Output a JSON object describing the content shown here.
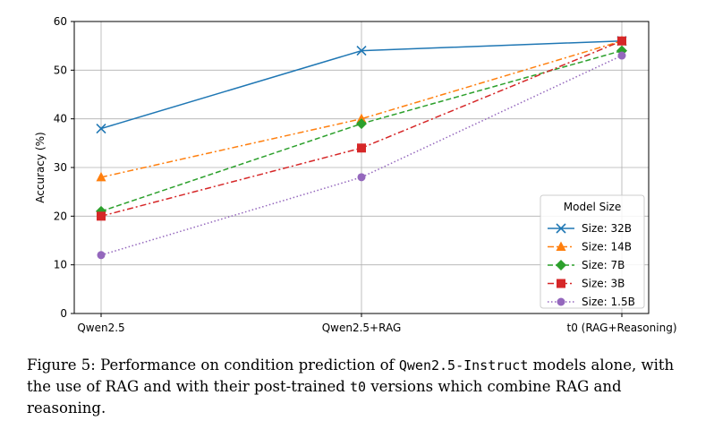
{
  "chart_data": {
    "type": "line",
    "categories": [
      "Qwen2.5",
      "Qwen2.5+RAG",
      "t0 (RAG+Reasoning)"
    ],
    "ylabel": "Accuracy (%)",
    "xlabel": "",
    "ylim": [
      0,
      60
    ],
    "yticks": [
      0,
      10,
      20,
      30,
      40,
      50,
      60
    ],
    "grid": true,
    "legend": {
      "title": "Model Size",
      "placement": "lower-right"
    },
    "series": [
      {
        "name": "Size: 32B",
        "values": [
          38,
          54,
          56
        ],
        "color": "#1f77b4",
        "marker": "x",
        "dash": "solid"
      },
      {
        "name": "Size: 14B",
        "values": [
          28,
          40,
          56
        ],
        "color": "#ff7f0e",
        "marker": "triangle",
        "dash": "dashdot"
      },
      {
        "name": "Size: 7B",
        "values": [
          21,
          39,
          54
        ],
        "color": "#2ca02c",
        "marker": "diamond",
        "dash": "dashed"
      },
      {
        "name": "Size: 3B",
        "values": [
          20,
          34,
          56
        ],
        "color": "#d62728",
        "marker": "square",
        "dash": "dashdot"
      },
      {
        "name": "Size: 1.5B",
        "values": [
          12,
          28,
          53
        ],
        "color": "#9467bd",
        "marker": "circle",
        "dash": "dotted"
      }
    ]
  },
  "caption": {
    "prefix": "Figure 5: Performance on condition prediction of ",
    "model_name": "Qwen2.5-Instruct",
    "middle": " models alone, with the use of RAG and with their post-trained ",
    "version_name": "t0",
    "suffix": " versions which combine RAG and reasoning."
  }
}
